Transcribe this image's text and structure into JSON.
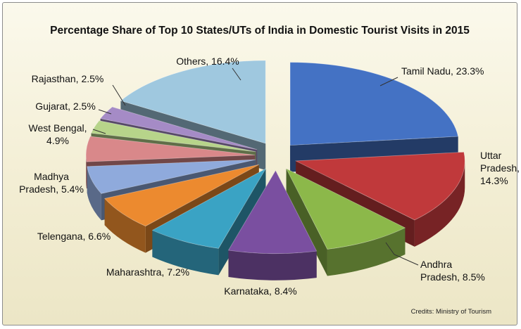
{
  "chart_data": {
    "type": "pie",
    "title": "Percentage Share of Top 10 States/UTs of India in Domestic Tourist Visits in 2015",
    "credits": "Credits: Ministry of Tourism",
    "slices": [
      {
        "label": "Tamil Nadu, 23.3%",
        "value": 23.3,
        "color": "#4472c4"
      },
      {
        "label": "Uttar Pradesh, 14.3%",
        "value": 14.3,
        "color": "#c0393b"
      },
      {
        "label": "Andhra Pradesh, 8.5%",
        "value": 8.5,
        "color": "#8cb84a"
      },
      {
        "label": "Karnataka, 8.4%",
        "value": 8.4,
        "color": "#7a4fa0"
      },
      {
        "label": "Maharashtra, 7.2%",
        "value": 7.2,
        "color": "#3aa3c4"
      },
      {
        "label": "Telengana, 6.6%",
        "value": 6.6,
        "color": "#ec8a2f"
      },
      {
        "label": "Madhya Pradesh, 5.4%",
        "value": 5.4,
        "color": "#8faadc"
      },
      {
        "label": "West Bengal, 4.9%",
        "value": 4.9,
        "color": "#d9888a"
      },
      {
        "label": "Gujarat, 2.5%",
        "value": 2.5,
        "color": "#b7d48a"
      },
      {
        "label": "Rajasthan, 2.5%",
        "value": 2.5,
        "color": "#a58bc6"
      },
      {
        "label": "Others, 16.4%",
        "value": 16.4,
        "color": "#9fc8df"
      }
    ]
  }
}
